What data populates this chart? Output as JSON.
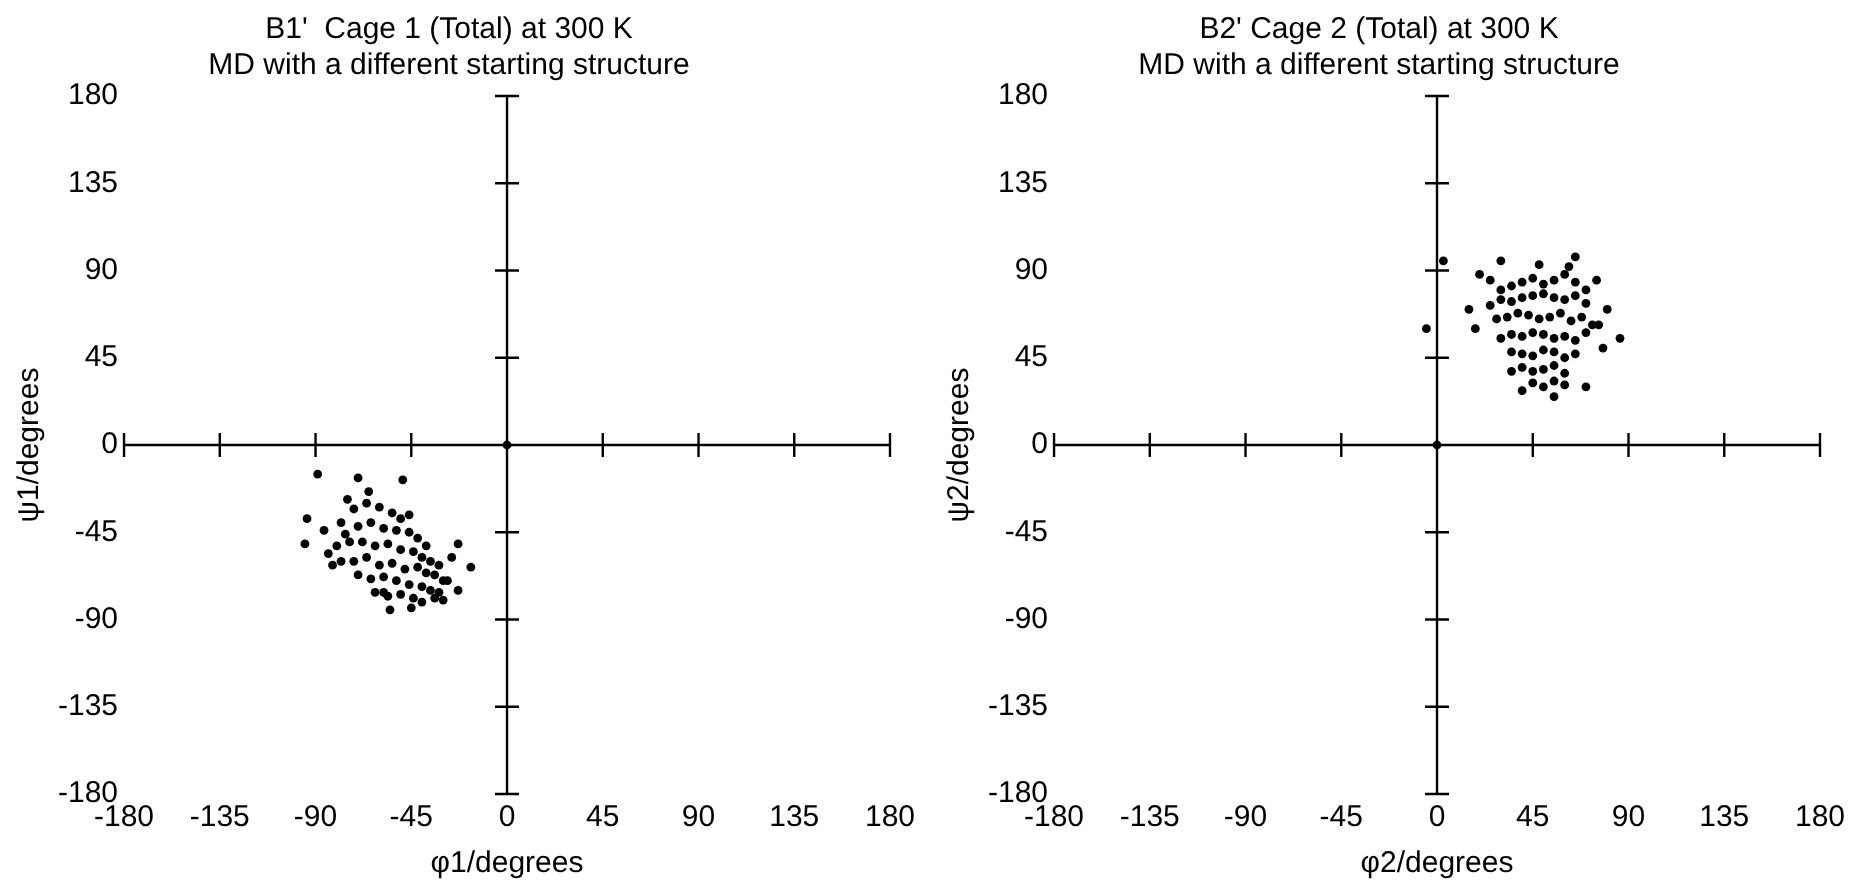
{
  "chart_data": [
    {
      "type": "scatter",
      "title": "B1'  Cage 1 (Total) at 300 K",
      "subtitle": "MD with a different starting structure",
      "xlabel": "φ1/degrees",
      "ylabel": "ψ1/degrees",
      "xlim": [
        -180,
        180
      ],
      "ylim": [
        -180,
        180
      ],
      "xticks": [
        -180,
        -135,
        -90,
        -45,
        0,
        45,
        90,
        135,
        180
      ],
      "yticks": [
        -180,
        -135,
        -90,
        -45,
        0,
        45,
        90,
        135,
        180
      ],
      "legend": false,
      "marker": "circle",
      "series": [
        {
          "color": "#000000",
          "x": [
            -89,
            -94,
            -95,
            -70,
            -49,
            -23,
            -17,
            -23,
            -34,
            -58,
            -84,
            -75,
            -72,
            -66,
            -60,
            -54,
            -50,
            -46,
            -78,
            -76,
            -70,
            -64,
            -58,
            -52,
            -46,
            -42,
            -38,
            -80,
            -74,
            -68,
            -62,
            -56,
            -50,
            -44,
            -40,
            -36,
            -32,
            -78,
            -72,
            -66,
            -60,
            -54,
            -48,
            -42,
            -38,
            -34,
            -30,
            -70,
            -64,
            -58,
            -52,
            -46,
            -40,
            -36,
            -32,
            -62,
            -56,
            -50,
            -44,
            -40,
            -28,
            -65,
            -86,
            -82,
            -55,
            -45,
            -30,
            -26,
            0
          ],
          "values": [
            -15,
            -38,
            -51,
            -17,
            -18,
            -51,
            -63,
            -75,
            -79,
            -76,
            -56,
            -28,
            -33,
            -30,
            -32,
            -35,
            -38,
            -36,
            -40,
            -46,
            -42,
            -40,
            -43,
            -44,
            -45,
            -48,
            -52,
            -52,
            -50,
            -50,
            -52,
            -51,
            -54,
            -55,
            -58,
            -60,
            -62,
            -60,
            -60,
            -58,
            -62,
            -61,
            -64,
            -63,
            -66,
            -67,
            -70,
            -67,
            -69,
            -68,
            -70,
            -72,
            -73,
            -75,
            -76,
            -76,
            -78,
            -77,
            -79,
            -81,
            -70,
            -24,
            -44,
            -62,
            -85,
            -84,
            -80,
            -58,
            0
          ]
        }
      ]
    },
    {
      "type": "scatter",
      "title": "B2' Cage 2 (Total) at 300 K",
      "subtitle": "MD with a different starting structure",
      "xlabel": "φ2/degrees",
      "ylabel": "ψ2/degrees",
      "xlim": [
        -180,
        180
      ],
      "ylim": [
        -180,
        180
      ],
      "xticks": [
        -180,
        -135,
        -90,
        -45,
        0,
        45,
        90,
        135,
        180
      ],
      "yticks": [
        -180,
        -135,
        -90,
        -45,
        0,
        45,
        90,
        135,
        180
      ],
      "legend": false,
      "marker": "circle",
      "series": [
        {
          "color": "#000000",
          "x": [
            -5,
            86,
            20,
            30,
            55,
            70,
            40,
            75,
            80,
            65,
            3,
            25,
            30,
            35,
            40,
            45,
            50,
            55,
            60,
            65,
            70,
            25,
            30,
            35,
            40,
            45,
            50,
            55,
            60,
            65,
            70,
            28,
            33,
            38,
            43,
            48,
            53,
            58,
            63,
            68,
            73,
            30,
            35,
            40,
            45,
            50,
            55,
            60,
            65,
            70,
            35,
            40,
            45,
            50,
            55,
            60,
            65,
            40,
            45,
            50,
            55,
            60,
            45,
            50,
            55,
            60,
            15,
            18,
            78,
            76,
            62,
            48,
            35,
            0
          ],
          "values": [
            60,
            55,
            88,
            95,
            25,
            30,
            28,
            85,
            70,
            97,
            95,
            85,
            80,
            82,
            84,
            86,
            83,
            85,
            88,
            84,
            80,
            72,
            75,
            74,
            76,
            77,
            78,
            76,
            75,
            77,
            73,
            65,
            66,
            68,
            67,
            65,
            66,
            68,
            64,
            66,
            62,
            55,
            57,
            56,
            58,
            57,
            55,
            56,
            54,
            58,
            48,
            47,
            46,
            49,
            48,
            45,
            47,
            40,
            38,
            39,
            41,
            37,
            32,
            30,
            33,
            31,
            70,
            60,
            50,
            62,
            92,
            93,
            38,
            0
          ]
        }
      ]
    }
  ]
}
